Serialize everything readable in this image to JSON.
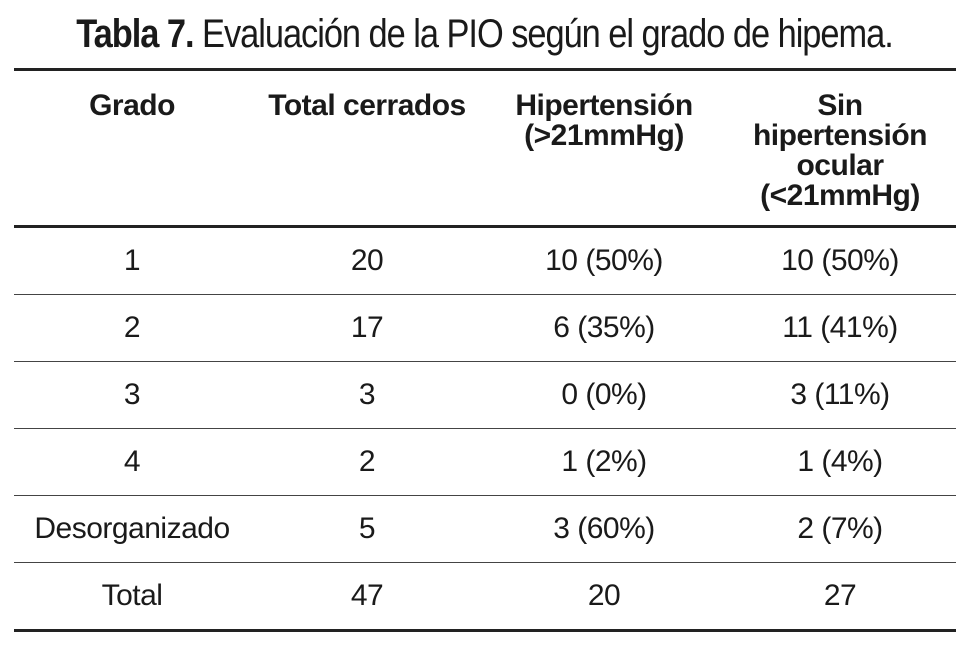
{
  "title": {
    "label": "Tabla 7.",
    "text": "Evaluación de la PIO según el grado de hipema."
  },
  "headers": [
    [
      "Grado"
    ],
    [
      "Total cerrados"
    ],
    [
      "Hipertensión",
      "(>21mmHg)"
    ],
    [
      "Sin",
      "hipertensión",
      "ocular",
      "(<21mmHg)"
    ]
  ],
  "rows": [
    [
      "1",
      "20",
      "10 (50%)",
      "10 (50%)"
    ],
    [
      "2",
      "17",
      "6 (35%)",
      "11 (41%)"
    ],
    [
      "3",
      "3",
      "0 (0%)",
      "3 (11%)"
    ],
    [
      "4",
      "2",
      "1 (2%)",
      "1 (4%)"
    ],
    [
      "Desorganizado",
      "5",
      "3 (60%)",
      "2 (7%)"
    ],
    [
      "Total",
      "47",
      "20",
      "27"
    ]
  ]
}
